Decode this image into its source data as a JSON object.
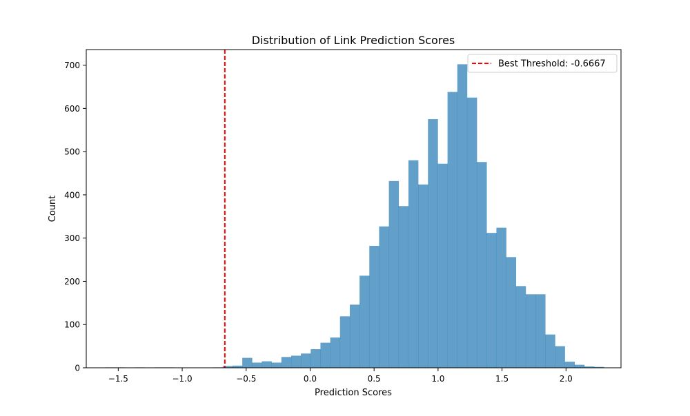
{
  "chart_data": {
    "type": "bar",
    "title": "Distribution of Link Prediction Scores",
    "xlabel": "Prediction Scores",
    "ylabel": "Count",
    "xlim": [
      -1.75,
      2.43
    ],
    "ylim": [
      0,
      736
    ],
    "x_ticks": [
      -1.5,
      -1.0,
      -0.5,
      0.0,
      0.5,
      1.0,
      1.5,
      2.0
    ],
    "x_tick_labels": [
      "−1.5",
      "−1.0",
      "−0.5",
      "0.0",
      "0.5",
      "1.0",
      "1.5",
      "2.0"
    ],
    "y_ticks": [
      0,
      100,
      200,
      300,
      400,
      500,
      600,
      700
    ],
    "y_tick_labels": [
      "0",
      "100",
      "200",
      "300",
      "400",
      "500",
      "600",
      "700"
    ],
    "bar_color": "#1f77b4",
    "bar_opacity": 0.7,
    "bin_start": -1.6,
    "bin_width": 0.0764,
    "counts": [
      1,
      1,
      0,
      1,
      0,
      1,
      1,
      0,
      0,
      0,
      0,
      1,
      4,
      5,
      23,
      12,
      15,
      12,
      25,
      28,
      33,
      43,
      58,
      70,
      119,
      146,
      213,
      282,
      327,
      432,
      374,
      480,
      424,
      575,
      472,
      638,
      702,
      625,
      476,
      312,
      324,
      256,
      189,
      170,
      170,
      77,
      50,
      14,
      7,
      3,
      2
    ],
    "threshold": {
      "value": -0.6667,
      "color": "#ff0000",
      "label": "Best Threshold: -0.6667"
    },
    "grid": false,
    "legend_position": "top-right"
  }
}
